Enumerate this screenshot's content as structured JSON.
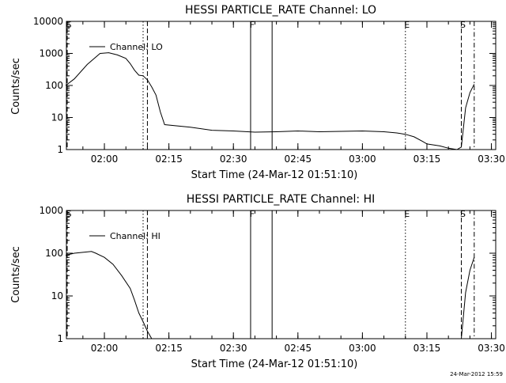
{
  "footer_timestamp": "24-Mar-2012 15:59",
  "chart_data": [
    {
      "type": "line",
      "title": "HESSI PARTICLE_RATE Channel: LO",
      "xlabel": "Start Time (24-Mar-12 01:51:10)",
      "ylabel": "Counts/sec",
      "y_scale": "log",
      "ylim": [
        1,
        10000
      ],
      "y_ticks": [
        "1",
        "10",
        "100",
        "1000",
        "10000"
      ],
      "x_ticks": [
        "02:00",
        "02:15",
        "02:30",
        "02:45",
        "03:00",
        "03:15",
        "03:30"
      ],
      "legend": "Channel: LO",
      "legend_position": "top-left",
      "markers": [
        {
          "label": "S",
          "time": "01:51",
          "style": "dashed"
        },
        {
          "label": "",
          "time": "02:09",
          "style": "dotted"
        },
        {
          "label": "",
          "time": "02:10",
          "style": "dashed"
        },
        {
          "label": "F",
          "time": "02:34",
          "style": "solid"
        },
        {
          "label": "",
          "time": "02:39",
          "style": "solid"
        },
        {
          "label": "E",
          "time": "03:10",
          "style": "dotted"
        },
        {
          "label": "S",
          "time": "03:23",
          "style": "dashed"
        },
        {
          "label": "",
          "time": "03:26",
          "style": "dashdot"
        }
      ],
      "series": [
        {
          "x": [
            "01:51",
            "01:53",
            "01:56",
            "01:59",
            "02:01",
            "02:03",
            "02:05",
            "02:06",
            "02:07",
            "02:08",
            "02:09",
            "02:10",
            "02:11",
            "02:12",
            "02:13",
            "02:14",
            "02:20",
            "02:25",
            "02:30",
            "02:35",
            "02:40",
            "02:45",
            "02:50",
            "02:55",
            "03:00",
            "03:05",
            "03:08",
            "03:10",
            "03:12",
            "03:14",
            "03:15",
            "03:18",
            "03:20",
            "03:22",
            "03:23",
            "03:24",
            "03:25",
            "03:26"
          ],
          "y": [
            100,
            160,
            450,
            1000,
            1050,
            900,
            700,
            480,
            300,
            210,
            200,
            150,
            90,
            50,
            15,
            6,
            5,
            4,
            3.8,
            3.5,
            3.6,
            3.8,
            3.6,
            3.7,
            3.8,
            3.6,
            3.3,
            3.0,
            2.5,
            1.8,
            1.5,
            1.3,
            1.1,
            1.0,
            1.2,
            20,
            60,
            110
          ]
        }
      ]
    },
    {
      "type": "line",
      "title": "HESSI PARTICLE_RATE Channel: HI",
      "xlabel": "Start Time (24-Mar-12 01:51:10)",
      "ylabel": "Counts/sec",
      "y_scale": "log",
      "ylim": [
        1,
        1000
      ],
      "y_ticks": [
        "1",
        "10",
        "100",
        "1000"
      ],
      "x_ticks": [
        "02:00",
        "02:15",
        "02:30",
        "02:45",
        "03:00",
        "03:15",
        "03:30"
      ],
      "legend": "Channel: HI",
      "legend_position": "top-left",
      "markers": [
        {
          "label": "S",
          "time": "01:51",
          "style": "dashed"
        },
        {
          "label": "",
          "time": "02:09",
          "style": "dotted"
        },
        {
          "label": "",
          "time": "02:10",
          "style": "dashed"
        },
        {
          "label": "F",
          "time": "02:34",
          "style": "solid"
        },
        {
          "label": "",
          "time": "02:39",
          "style": "solid"
        },
        {
          "label": "E",
          "time": "03:10",
          "style": "dotted"
        },
        {
          "label": "S",
          "time": "03:23",
          "style": "dashed"
        },
        {
          "label": "",
          "time": "03:26",
          "style": "dashdot"
        }
      ],
      "series": [
        {
          "x": [
            "01:51",
            "01:53",
            "01:55",
            "01:57",
            "01:58",
            "02:00",
            "02:02",
            "02:04",
            "02:06",
            "02:07",
            "02:08",
            "02:09",
            "02:10",
            "02:11"
          ],
          "y": [
            90,
            100,
            105,
            110,
            100,
            80,
            55,
            30,
            15,
            8,
            4,
            2.5,
            1.5,
            1
          ],
          "x2": [
            "03:23",
            "03:24",
            "03:25",
            "03:26"
          ],
          "y2": [
            1,
            12,
            40,
            80
          ]
        }
      ]
    }
  ]
}
